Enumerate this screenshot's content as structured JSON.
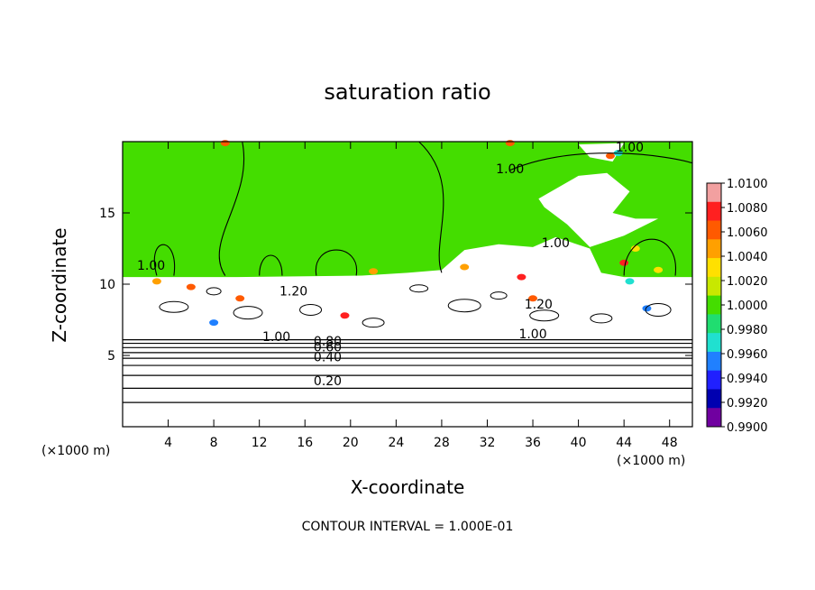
{
  "chart_data": {
    "type": "heatmap",
    "title": "saturation ratio",
    "xlabel": "X-coordinate",
    "ylabel": "Z-coordinate",
    "x_unit": "(×1000 m)",
    "y_unit": "(×1000 m)",
    "xlim": [
      0,
      50
    ],
    "ylim": [
      0,
      20
    ],
    "x_ticks": [
      "4",
      "8",
      "12",
      "16",
      "20",
      "24",
      "28",
      "32",
      "36",
      "40",
      "44",
      "48"
    ],
    "y_ticks": [
      "5",
      "10",
      "15"
    ],
    "note": "CONTOUR INTERVAL = 1.000E-01",
    "colorbar": {
      "labels": [
        "1.0100",
        "1.0080",
        "1.0060",
        "1.0040",
        "1.0020",
        "1.0000",
        "0.9980",
        "0.9960",
        "0.9940",
        "0.9920",
        "0.9900"
      ],
      "colors": [
        "#f2a0a0",
        "#ff2020",
        "#ff5a00",
        "#ffa000",
        "#ffe000",
        "#c8e800",
        "#44dd00",
        "#20dd70",
        "#20e0d0",
        "#2080ff",
        "#2020ff",
        "#0000b0",
        "#7000a0"
      ]
    },
    "contour_labels": [
      {
        "text": "1.00",
        "x": 2.5,
        "z": 11.0
      },
      {
        "text": "1.20",
        "x": 15.0,
        "z": 9.2
      },
      {
        "text": "1.00",
        "x": 13.5,
        "z": 6.0
      },
      {
        "text": "0.80",
        "x": 18.0,
        "z": 5.7
      },
      {
        "text": "0.60",
        "x": 18.0,
        "z": 5.3
      },
      {
        "text": "0.40",
        "x": 18.0,
        "z": 4.6
      },
      {
        "text": "0.20",
        "x": 18.0,
        "z": 2.9
      },
      {
        "text": "1.00",
        "x": 34.0,
        "z": 17.8
      },
      {
        "text": "1.00",
        "x": 44.5,
        "z": 19.3
      },
      {
        "text": "1.00",
        "x": 38.0,
        "z": 12.6
      },
      {
        "text": "1.20",
        "x": 36.5,
        "z": 8.3
      },
      {
        "text": "1.00",
        "x": 36.0,
        "z": 6.2
      }
    ]
  }
}
